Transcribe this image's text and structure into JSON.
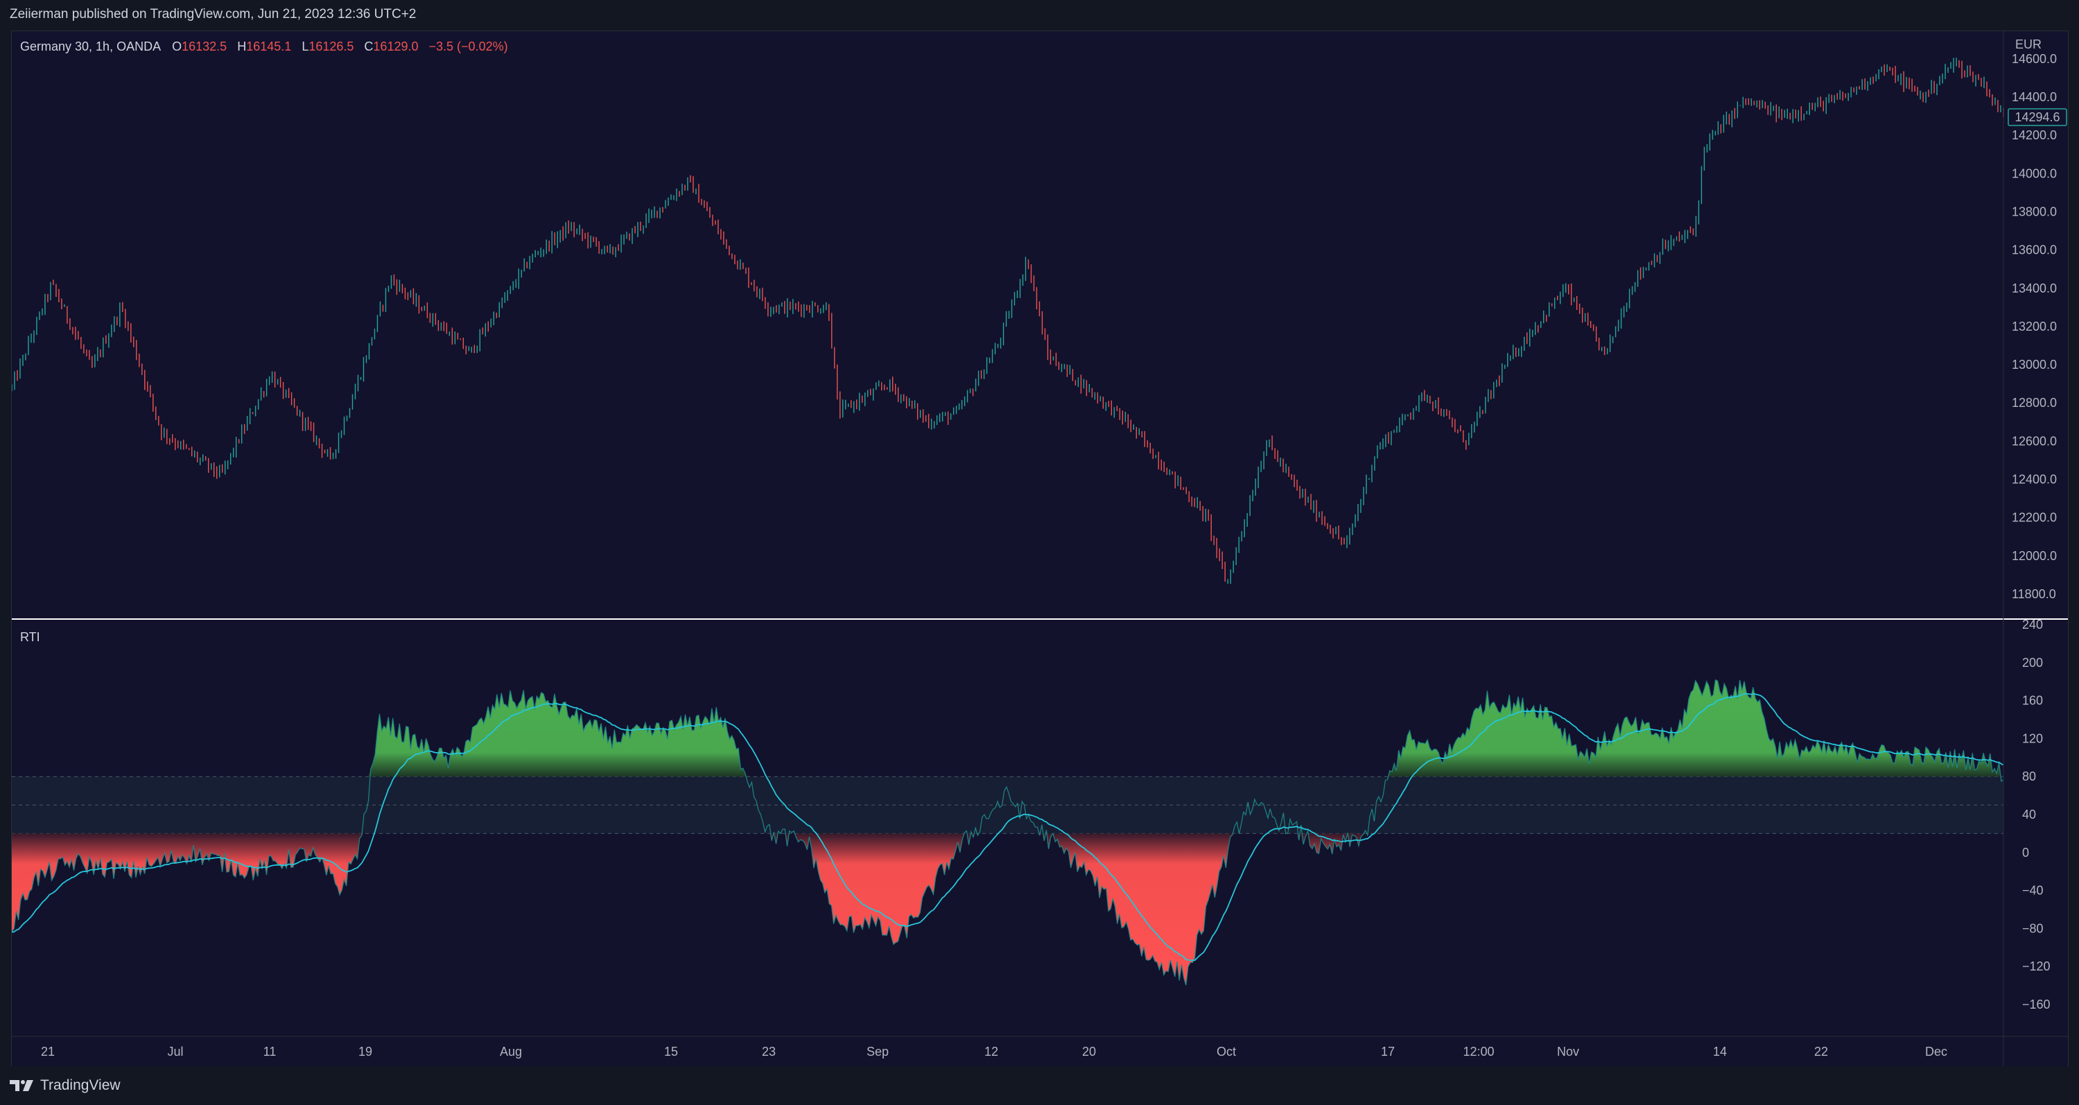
{
  "header": {
    "publisher_line": "Zeiierman published on TradingView.com, Jun 21, 2023 12:36 UTC+2"
  },
  "symbol_legend": {
    "symbol": "Germany 30, 1h, OANDA",
    "open_label": "O",
    "open_value": "16132.5",
    "high_label": "H",
    "high_value": "16145.1",
    "low_label": "L",
    "low_value": "16126.5",
    "close_label": "C",
    "close_value": "16129.0",
    "change": "−3.5 (−0.02%)"
  },
  "price_axis": {
    "currency": "EUR",
    "ticks": [
      "14600.0",
      "14400.0",
      "14200.0",
      "14000.0",
      "13800.0",
      "13600.0",
      "13400.0",
      "13200.0",
      "13000.0",
      "12800.0",
      "12600.0",
      "12400.0",
      "12200.0",
      "12000.0",
      "11800.0"
    ],
    "last_price": "14294.6"
  },
  "indicator": {
    "name": "RTI",
    "ticks": [
      "240",
      "200",
      "160",
      "120",
      "80",
      "40",
      "0",
      "−40",
      "−80",
      "−120",
      "−160"
    ]
  },
  "time_axis": {
    "labels": [
      "21",
      "Jul",
      "11",
      "19",
      "Aug",
      "15",
      "23",
      "Sep",
      "12",
      "20",
      "Oct",
      "17",
      "12:00",
      "Nov",
      "14",
      "22",
      "Dec"
    ]
  },
  "footer": {
    "brand": "TradingView"
  },
  "colors": {
    "background": "#12122d",
    "up": "#26a69a",
    "down": "#ef5350",
    "rti_green": "#4caf50",
    "rti_red": "#ff5252",
    "rti_line": "#26c6da",
    "band": "#1b2a3a",
    "separator": "#ffffff"
  },
  "chart_data": [
    {
      "type": "candlestick",
      "title": "Germany 30, 1h, OANDA",
      "ylabel": "EUR",
      "ylim": [
        11700,
        14650
      ],
      "x_labels": [
        "21",
        "Jul",
        "11",
        "19",
        "Aug",
        "15",
        "23",
        "Sep",
        "12",
        "20",
        "Oct",
        "17",
        "12:00",
        "Nov",
        "14",
        "22",
        "Dec"
      ],
      "price_path": [
        {
          "t": 0.0,
          "v": 12880
        },
        {
          "t": 0.02,
          "v": 13420
        },
        {
          "t": 0.04,
          "v": 12980
        },
        {
          "t": 0.055,
          "v": 13300
        },
        {
          "t": 0.075,
          "v": 12650
        },
        {
          "t": 0.105,
          "v": 12420
        },
        {
          "t": 0.13,
          "v": 12950
        },
        {
          "t": 0.16,
          "v": 12500
        },
        {
          "t": 0.175,
          "v": 12950
        },
        {
          "t": 0.19,
          "v": 13450
        },
        {
          "t": 0.23,
          "v": 13060
        },
        {
          "t": 0.26,
          "v": 13550
        },
        {
          "t": 0.28,
          "v": 13720
        },
        {
          "t": 0.3,
          "v": 13580
        },
        {
          "t": 0.34,
          "v": 13960
        },
        {
          "t": 0.36,
          "v": 13600
        },
        {
          "t": 0.38,
          "v": 13300
        },
        {
          "t": 0.41,
          "v": 13300
        },
        {
          "t": 0.415,
          "v": 12750
        },
        {
          "t": 0.44,
          "v": 12900
        },
        {
          "t": 0.46,
          "v": 12700
        },
        {
          "t": 0.475,
          "v": 12750
        },
        {
          "t": 0.495,
          "v": 13100
        },
        {
          "t": 0.51,
          "v": 13550
        },
        {
          "t": 0.52,
          "v": 13050
        },
        {
          "t": 0.56,
          "v": 12700
        },
        {
          "t": 0.6,
          "v": 12200
        },
        {
          "t": 0.61,
          "v": 11850
        },
        {
          "t": 0.63,
          "v": 12600
        },
        {
          "t": 0.645,
          "v": 12350
        },
        {
          "t": 0.67,
          "v": 12050
        },
        {
          "t": 0.685,
          "v": 12550
        },
        {
          "t": 0.71,
          "v": 12850
        },
        {
          "t": 0.73,
          "v": 12600
        },
        {
          "t": 0.75,
          "v": 13000
        },
        {
          "t": 0.78,
          "v": 13400
        },
        {
          "t": 0.8,
          "v": 13050
        },
        {
          "t": 0.815,
          "v": 13450
        },
        {
          "t": 0.83,
          "v": 13620
        },
        {
          "t": 0.845,
          "v": 13700
        },
        {
          "t": 0.85,
          "v": 14150
        },
        {
          "t": 0.87,
          "v": 14380
        },
        {
          "t": 0.89,
          "v": 14300
        },
        {
          "t": 0.92,
          "v": 14400
        },
        {
          "t": 0.94,
          "v": 14550
        },
        {
          "t": 0.96,
          "v": 14400
        },
        {
          "t": 0.975,
          "v": 14580
        },
        {
          "t": 0.99,
          "v": 14470
        },
        {
          "t": 1.0,
          "v": 14290
        }
      ]
    },
    {
      "type": "area",
      "title": "RTI",
      "ylim": [
        -180,
        240
      ],
      "upper_band": 80,
      "mid_level": 50,
      "lower_band": 20,
      "series": [
        {
          "name": "RTI",
          "values": [
            {
              "t": 0.0,
              "v": -80
            },
            {
              "t": 0.01,
              "v": -30
            },
            {
              "t": 0.03,
              "v": -10
            },
            {
              "t": 0.06,
              "v": -20
            },
            {
              "t": 0.09,
              "v": 0
            },
            {
              "t": 0.12,
              "v": -20
            },
            {
              "t": 0.15,
              "v": 0
            },
            {
              "t": 0.165,
              "v": -40
            },
            {
              "t": 0.175,
              "v": 10
            },
            {
              "t": 0.185,
              "v": 140
            },
            {
              "t": 0.2,
              "v": 120
            },
            {
              "t": 0.22,
              "v": 95
            },
            {
              "t": 0.245,
              "v": 160
            },
            {
              "t": 0.27,
              "v": 160
            },
            {
              "t": 0.3,
              "v": 120
            },
            {
              "t": 0.33,
              "v": 130
            },
            {
              "t": 0.355,
              "v": 145
            },
            {
              "t": 0.37,
              "v": 80
            },
            {
              "t": 0.38,
              "v": 20
            },
            {
              "t": 0.4,
              "v": 10
            },
            {
              "t": 0.415,
              "v": -80
            },
            {
              "t": 0.43,
              "v": -70
            },
            {
              "t": 0.445,
              "v": -95
            },
            {
              "t": 0.47,
              "v": -10
            },
            {
              "t": 0.49,
              "v": 40
            },
            {
              "t": 0.5,
              "v": 60
            },
            {
              "t": 0.52,
              "v": 15
            },
            {
              "t": 0.54,
              "v": -20
            },
            {
              "t": 0.57,
              "v": -110
            },
            {
              "t": 0.59,
              "v": -130
            },
            {
              "t": 0.605,
              "v": -30
            },
            {
              "t": 0.62,
              "v": 50
            },
            {
              "t": 0.64,
              "v": 30
            },
            {
              "t": 0.66,
              "v": 0
            },
            {
              "t": 0.68,
              "v": 20
            },
            {
              "t": 0.7,
              "v": 120
            },
            {
              "t": 0.72,
              "v": 100
            },
            {
              "t": 0.74,
              "v": 160
            },
            {
              "t": 0.77,
              "v": 150
            },
            {
              "t": 0.79,
              "v": 100
            },
            {
              "t": 0.81,
              "v": 135
            },
            {
              "t": 0.835,
              "v": 120
            },
            {
              "t": 0.845,
              "v": 175
            },
            {
              "t": 0.875,
              "v": 170
            },
            {
              "t": 0.885,
              "v": 110
            },
            {
              "t": 0.93,
              "v": 105
            },
            {
              "t": 0.97,
              "v": 100
            },
            {
              "t": 0.995,
              "v": 95
            },
            {
              "t": 1.0,
              "v": 80
            }
          ]
        }
      ]
    }
  ]
}
